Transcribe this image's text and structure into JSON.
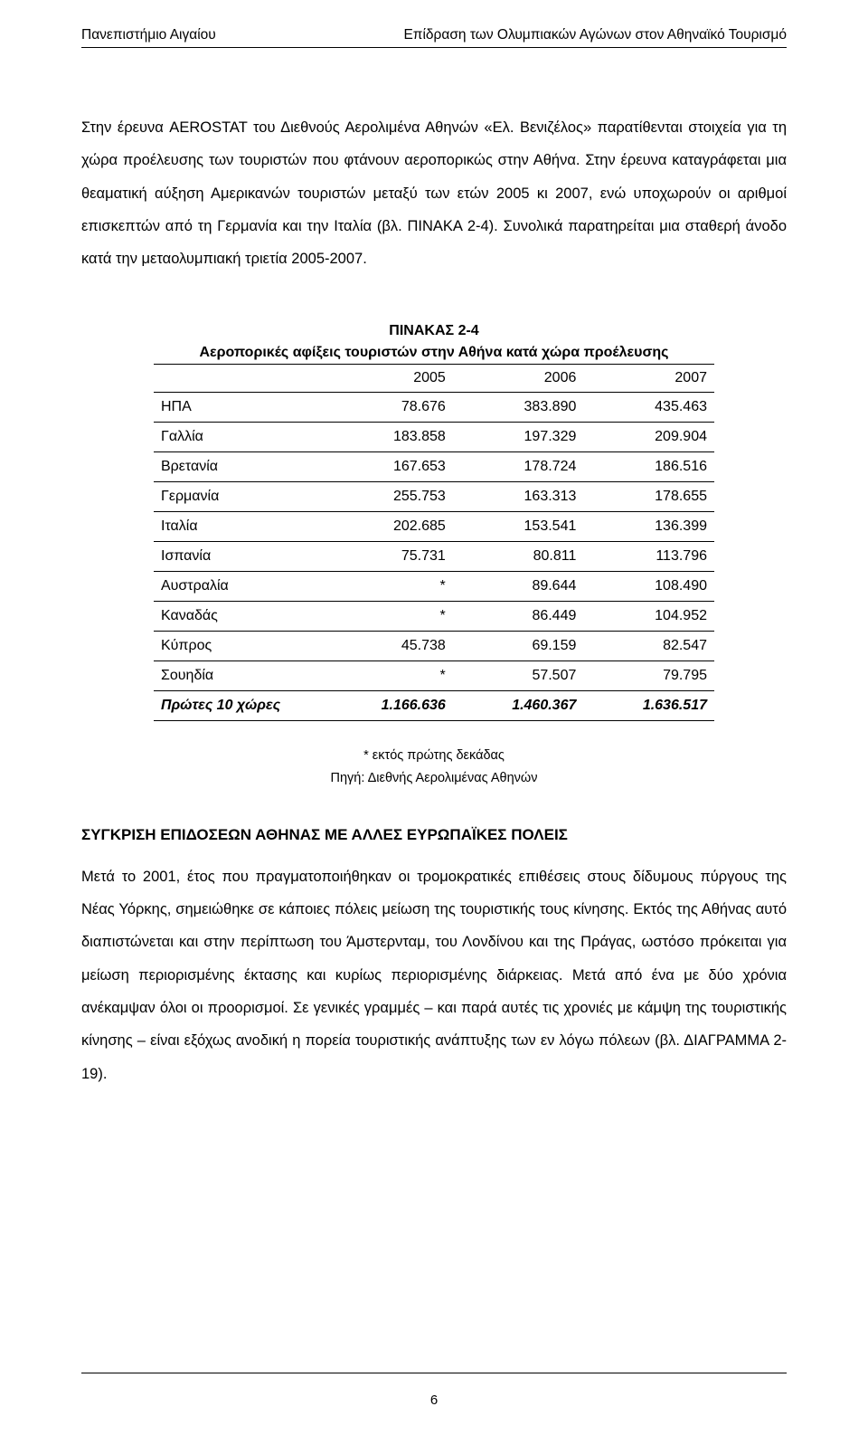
{
  "header": {
    "left": "Πανεπιστήμιο Αιγαίου",
    "right": "Επίδραση των Ολυμπιακών Αγώνων στον Αθηναϊκό Τουρισμό"
  },
  "paragraph1": "Στην έρευνα AEROSTAT του Διεθνούς Αερολιμένα Αθηνών «Ελ. Βενιζέλος» παρατίθενται στοιχεία για τη χώρα προέλευσης των τουριστών που φτάνουν αεροπορικώς στην Αθήνα. Στην έρευνα καταγράφεται μια θεαματική αύξηση Αμερικανών τουριστών μεταξύ των ετών 2005 κι 2007, ενώ υποχωρούν οι αριθμοί επισκεπτών από τη Γερμανία και την Ιταλία (βλ. ΠΙΝΑΚΑ 2-4). Συνολικά παρατηρείται μια σταθερή άνοδο κατά την μεταολυμπιακή τριετία 2005-2007.",
  "table": {
    "type": "table",
    "title_line1": "ΠΙΝΑΚΑΣ 2-4",
    "title_line2": "Αεροπορικές αφίξεις τουριστών στην Αθήνα κατά χώρα προέλευσης",
    "columns": [
      "",
      "2005",
      "2006",
      "2007"
    ],
    "rows": [
      [
        "ΗΠΑ",
        "78.676",
        "383.890",
        "435.463"
      ],
      [
        "Γαλλία",
        "183.858",
        "197.329",
        "209.904"
      ],
      [
        "Βρετανία",
        "167.653",
        "178.724",
        "186.516"
      ],
      [
        "Γερμανία",
        "255.753",
        "163.313",
        "178.655"
      ],
      [
        "Ιταλία",
        "202.685",
        "153.541",
        "136.399"
      ],
      [
        "Ισπανία",
        "75.731",
        "80.811",
        "113.796"
      ],
      [
        "Αυστραλία",
        "*",
        "89.644",
        "108.490"
      ],
      [
        "Καναδάς",
        "*",
        "86.449",
        "104.952"
      ],
      [
        "Κύπρος",
        "45.738",
        "69.159",
        "82.547"
      ],
      [
        "Σουηδία",
        "*",
        "57.507",
        "79.795"
      ]
    ],
    "total_row": [
      "Πρώτες 10 χώρες",
      "1.166.636",
      "1.460.367",
      "1.636.517"
    ],
    "note_line1": "* εκτός πρώτης δεκάδας",
    "note_line2": "Πηγή: Διεθνής Αερολιμένας Αθηνών",
    "border_color": "#000000",
    "background_color": "#ffffff",
    "body_fontsize": 16,
    "title_fontsize": 16
  },
  "section_heading": "ΣΥΓΚΡΙΣΗ ΕΠΙΔΟΣΕΩΝ ΑΘΗΝΑΣ ΜΕ ΑΛΛΕΣ ΕΥΡΩΠΑΪΚΕΣ ΠΟΛΕΙΣ",
  "paragraph2": "Μετά το 2001, έτος που πραγματοποιήθηκαν οι τρομοκρατικές επιθέσεις στους δίδυμους πύργους της Νέας Υόρκης, σημειώθηκε σε κάποιες πόλεις μείωση της τουριστικής τους κίνησης. Εκτός της Αθήνας αυτό διαπιστώνεται και στην περίπτωση του Άμστερνταμ, του Λονδίνου και της Πράγας, ωστόσο πρόκειται για μείωση περιορισμένης έκτασης και κυρίως περιορισμένης διάρκειας. Μετά από ένα με δύο χρόνια ανέκαμψαν όλοι οι προορισμοί. Σε γενικές γραμμές – και παρά αυτές τις χρονιές με κάμψη της τουριστικής κίνησης – είναι εξόχως ανοδική η πορεία τουριστικής ανάπτυξης των εν λόγω πόλεων (βλ. ΔΙΑΓΡΑΜΜΑ 2-19).",
  "footer": {
    "page_number": "6"
  }
}
